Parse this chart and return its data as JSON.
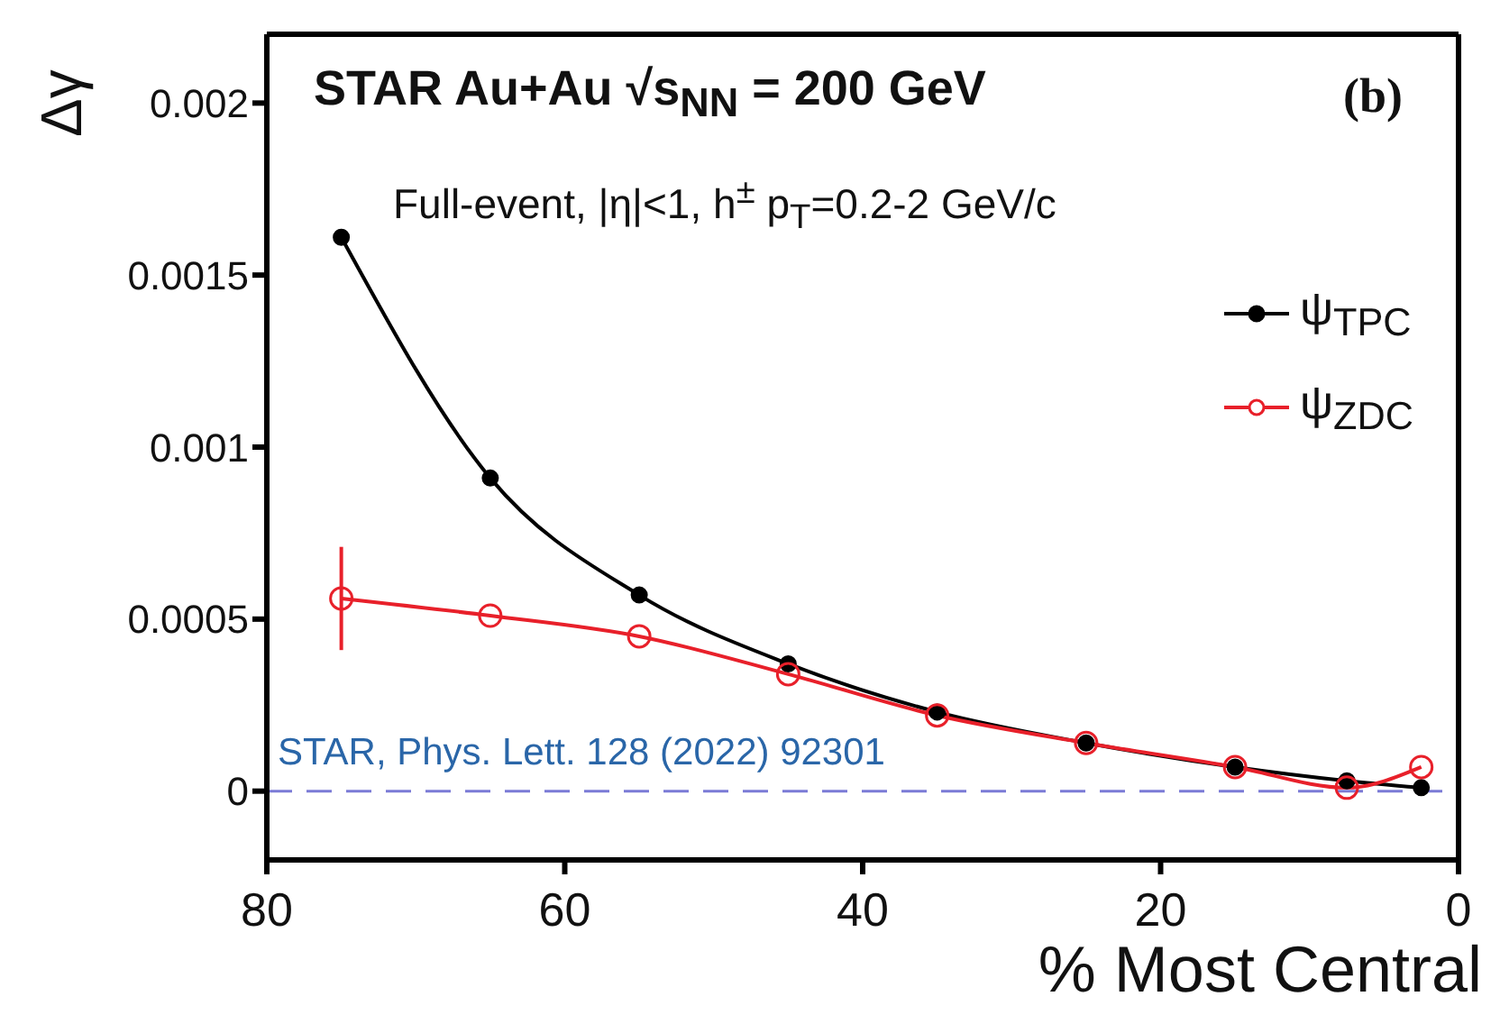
{
  "chart_data": {
    "type": "line",
    "title": "STAR Au+Au √s$_{NN}$ = 200 GeV",
    "subtitle": "Full-event, |η|<1, h$^{±}$ p$_{T}$=0.2-2 GeV/c",
    "xlabel": "% Most Central",
    "ylabel": "Δγ",
    "x": [
      75,
      65,
      55,
      45,
      35,
      25,
      15,
      7.5,
      2.5
    ],
    "series": [
      {
        "name": "ψ$_{TPC}$",
        "color": "#000000",
        "values": [
          0.00161,
          0.00091,
          0.00057,
          0.00037,
          0.00023,
          0.00014,
          7e-05,
          3e-05,
          1e-05
        ]
      },
      {
        "name": "ψ$_{ZDC}$",
        "color": "#e8202a",
        "values": [
          0.00056,
          0.00051,
          0.00045,
          0.00034,
          0.00022,
          0.00014,
          7e-05,
          1e-05,
          7e-05
        ],
        "errors": [
          0.00015,
          null,
          null,
          null,
          null,
          null,
          null,
          null,
          null
        ]
      }
    ],
    "xlim": [
      80,
      0
    ],
    "xticks": [
      80,
      60,
      40,
      20,
      0
    ],
    "ylim": [
      -0.0002,
      0.0022
    ],
    "yticks": [
      0,
      0.0005,
      0.001,
      0.0015,
      0.002
    ],
    "ref_lines": [
      {
        "axis": "y",
        "value": 0,
        "color": "#7b7bd6",
        "line_style": "dashed"
      }
    ],
    "annotations": [
      "(b)",
      "STAR, Phys. Lett. 128 (2022) 92301"
    ],
    "legend": "right",
    "marker": "circle",
    "line_style": "solid",
    "grid": false
  }
}
